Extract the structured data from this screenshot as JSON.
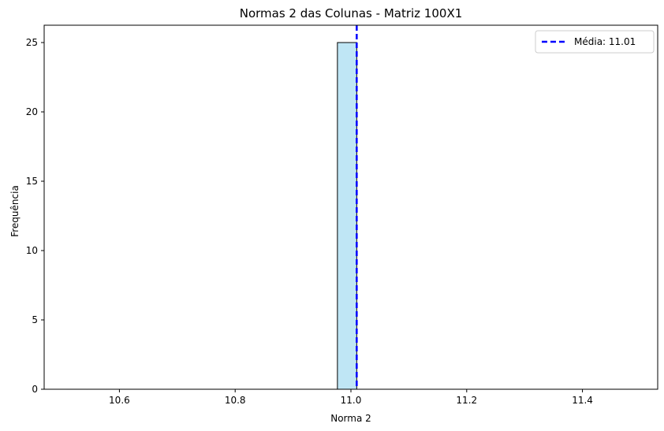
{
  "chart_data": {
    "type": "bar",
    "title": "Normas 2 das Colunas - Matriz 100X1",
    "xlabel": "Norma 2",
    "ylabel": "Frequência",
    "xlim": [
      10.47,
      11.53
    ],
    "ylim": [
      0,
      26.25
    ],
    "xticks": [
      10.6,
      10.8,
      11.0,
      11.2,
      11.4
    ],
    "xtick_labels": [
      "10.6",
      "10.8",
      "11.0",
      "11.2",
      "11.4"
    ],
    "yticks": [
      0,
      5,
      10,
      15,
      20,
      25
    ],
    "ytick_labels": [
      "0",
      "5",
      "10",
      "15",
      "20",
      "25"
    ],
    "bins": {
      "start": 10.51,
      "end": 11.51,
      "count": 30
    },
    "bars": [
      {
        "x_start": 10.99,
        "x_end": 11.03,
        "value": 25
      }
    ],
    "bar_fill": "#bfe6f5",
    "bar_edge": "#000000",
    "mean_line": {
      "value": 11.01,
      "color": "#0000ff",
      "style": "dashed"
    },
    "legend": {
      "position": "upper right",
      "entries": [
        {
          "label": "Média: 11.01",
          "color": "#0000ff",
          "style": "dashed"
        }
      ]
    },
    "grid": false
  }
}
